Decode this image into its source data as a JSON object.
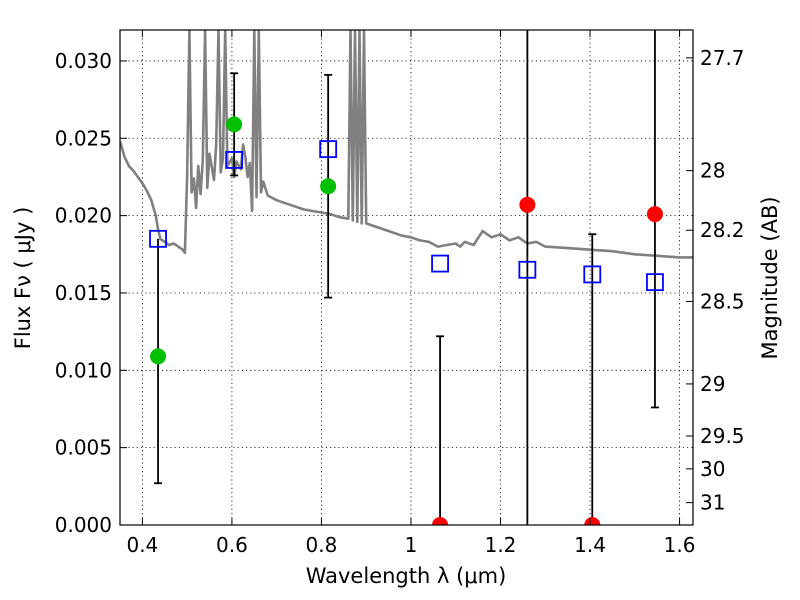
{
  "chart_data": {
    "type": "scatter",
    "xlabel": "Wavelength  λ (μm)",
    "ylabel_left": "Flux  Fν  ( μJy )",
    "ylabel_right": "Magnitude (AB)",
    "xlim": [
      0.35,
      1.63
    ],
    "ylim": [
      0.0,
      0.032
    ],
    "x_ticks": [
      {
        "value": 0.4,
        "label": "0.4"
      },
      {
        "value": 0.6,
        "label": "0.6"
      },
      {
        "value": 0.8,
        "label": "0.8"
      },
      {
        "value": 1.0,
        "label": "1"
      },
      {
        "value": 1.2,
        "label": "1.2"
      },
      {
        "value": 1.4,
        "label": "1.4"
      },
      {
        "value": 1.6,
        "label": "1.6"
      }
    ],
    "y_ticks": [
      {
        "value": 0.0,
        "label": "0.000"
      },
      {
        "value": 0.005,
        "label": "0.005"
      },
      {
        "value": 0.01,
        "label": "0.010"
      },
      {
        "value": 0.015,
        "label": "0.015"
      },
      {
        "value": 0.02,
        "label": "0.020"
      },
      {
        "value": 0.025,
        "label": "0.025"
      },
      {
        "value": 0.03,
        "label": "0.030"
      }
    ],
    "right_ticks": [
      {
        "mag": 27.7,
        "label": "27.7"
      },
      {
        "mag": 28.0,
        "label": "28"
      },
      {
        "mag": 28.2,
        "label": "28.2"
      },
      {
        "mag": 28.5,
        "label": "28.5"
      },
      {
        "mag": 29.0,
        "label": "29"
      },
      {
        "mag": 29.5,
        "label": "29.5"
      },
      {
        "mag": 30.0,
        "label": "30"
      },
      {
        "mag": 31.0,
        "label": "31"
      }
    ],
    "grid": true,
    "series": [
      {
        "kind": "line",
        "color": "#808080",
        "points": [
          [
            0.35,
            0.0248
          ],
          [
            0.36,
            0.0238
          ],
          [
            0.37,
            0.0232
          ],
          [
            0.38,
            0.0229
          ],
          [
            0.39,
            0.0225
          ],
          [
            0.4,
            0.0221
          ],
          [
            0.41,
            0.0216
          ],
          [
            0.42,
            0.021
          ],
          [
            0.43,
            0.02
          ],
          [
            0.435,
            0.0191
          ],
          [
            0.44,
            0.0185
          ],
          [
            0.45,
            0.0183
          ],
          [
            0.46,
            0.0181
          ],
          [
            0.47,
            0.0182
          ],
          [
            0.48,
            0.018
          ],
          [
            0.49,
            0.0178
          ],
          [
            0.495,
            0.0176
          ],
          [
            0.5,
            0.0225
          ],
          [
            0.505,
            0.032
          ],
          [
            0.51,
            0.0215
          ],
          [
            0.515,
            0.0224
          ],
          [
            0.52,
            0.0205
          ],
          [
            0.525,
            0.0232
          ],
          [
            0.53,
            0.0214
          ],
          [
            0.535,
            0.0236
          ],
          [
            0.54,
            0.032
          ],
          [
            0.545,
            0.0218
          ],
          [
            0.55,
            0.024
          ],
          [
            0.56,
            0.0223
          ],
          [
            0.565,
            0.0246
          ],
          [
            0.57,
            0.032
          ],
          [
            0.575,
            0.0228
          ],
          [
            0.58,
            0.0237
          ],
          [
            0.585,
            0.032
          ],
          [
            0.59,
            0.0232
          ],
          [
            0.6,
            0.0237
          ],
          [
            0.605,
            0.0225
          ],
          [
            0.61,
            0.0235
          ],
          [
            0.62,
            0.023
          ],
          [
            0.625,
            0.0246
          ],
          [
            0.63,
            0.0238
          ],
          [
            0.635,
            0.0225
          ],
          [
            0.64,
            0.0234
          ],
          [
            0.645,
            0.0203
          ],
          [
            0.65,
            0.032
          ],
          [
            0.655,
            0.0212
          ],
          [
            0.66,
            0.032
          ],
          [
            0.665,
            0.0215
          ],
          [
            0.67,
            0.0222
          ],
          [
            0.68,
            0.0213
          ],
          [
            0.7,
            0.021
          ],
          [
            0.72,
            0.0208
          ],
          [
            0.74,
            0.0206
          ],
          [
            0.76,
            0.0204
          ],
          [
            0.78,
            0.0203
          ],
          [
            0.8,
            0.0202
          ],
          [
            0.82,
            0.0201
          ],
          [
            0.84,
            0.0199
          ],
          [
            0.86,
            0.0198
          ],
          [
            0.865,
            0.032
          ],
          [
            0.87,
            0.0197
          ],
          [
            0.875,
            0.032
          ],
          [
            0.88,
            0.0196
          ],
          [
            0.885,
            0.032
          ],
          [
            0.89,
            0.0195
          ],
          [
            0.895,
            0.032
          ],
          [
            0.9,
            0.0195
          ],
          [
            0.92,
            0.0193
          ],
          [
            0.94,
            0.0191
          ],
          [
            0.96,
            0.0189
          ],
          [
            0.98,
            0.0187
          ],
          [
            1.0,
            0.0186
          ],
          [
            1.02,
            0.0184
          ],
          [
            1.04,
            0.0183
          ],
          [
            1.06,
            0.018
          ],
          [
            1.08,
            0.0181
          ],
          [
            1.1,
            0.0182
          ],
          [
            1.11,
            0.018
          ],
          [
            1.12,
            0.0183
          ],
          [
            1.14,
            0.0181
          ],
          [
            1.16,
            0.019
          ],
          [
            1.18,
            0.0186
          ],
          [
            1.2,
            0.0188
          ],
          [
            1.22,
            0.0184
          ],
          [
            1.24,
            0.0186
          ],
          [
            1.26,
            0.0182
          ],
          [
            1.28,
            0.0183
          ],
          [
            1.3,
            0.018
          ],
          [
            1.35,
            0.0179
          ],
          [
            1.4,
            0.0178
          ],
          [
            1.45,
            0.0177
          ],
          [
            1.5,
            0.0175
          ],
          [
            1.55,
            0.0174
          ],
          [
            1.6,
            0.0173
          ],
          [
            1.63,
            0.0173
          ]
        ]
      },
      {
        "kind": "squares",
        "color": "#0000ff",
        "points": [
          [
            0.435,
            0.0185
          ],
          [
            0.605,
            0.0236
          ],
          [
            0.815,
            0.0243
          ],
          [
            1.065,
            0.0169
          ],
          [
            1.26,
            0.0165
          ],
          [
            1.405,
            0.0162
          ],
          [
            1.545,
            0.0157
          ]
        ]
      },
      {
        "kind": "circles",
        "color": "#00c000",
        "points": [
          [
            0.435,
            0.0109
          ],
          [
            0.605,
            0.0259
          ],
          [
            0.815,
            0.0219
          ]
        ]
      },
      {
        "kind": "circles",
        "color": "#ff0000",
        "points": [
          [
            1.065,
            0.0
          ],
          [
            1.26,
            0.0207
          ],
          [
            1.405,
            0.0
          ],
          [
            1.545,
            0.0201
          ]
        ]
      }
    ],
    "errorbars": [
      {
        "x": 0.435,
        "low": 0.0027,
        "high": 0.0185,
        "cap_low": true,
        "cap_high": false
      },
      {
        "x": 0.605,
        "low": 0.0226,
        "high": 0.0292,
        "cap_low": true,
        "cap_high": true
      },
      {
        "x": 0.815,
        "low": 0.0147,
        "high": 0.0291,
        "cap_low": true,
        "cap_high": true
      },
      {
        "x": 1.065,
        "low": 0.0,
        "high": 0.0122,
        "cap_low": false,
        "cap_high": true
      },
      {
        "x": 1.26,
        "low": 0.0,
        "high": 0.033,
        "cap_low": false,
        "cap_high": false
      },
      {
        "x": 1.405,
        "low": 0.0,
        "high": 0.0188,
        "cap_low": false,
        "cap_high": true
      },
      {
        "x": 1.545,
        "low": 0.0076,
        "high": 0.033,
        "cap_low": true,
        "cap_high": false
      }
    ]
  }
}
